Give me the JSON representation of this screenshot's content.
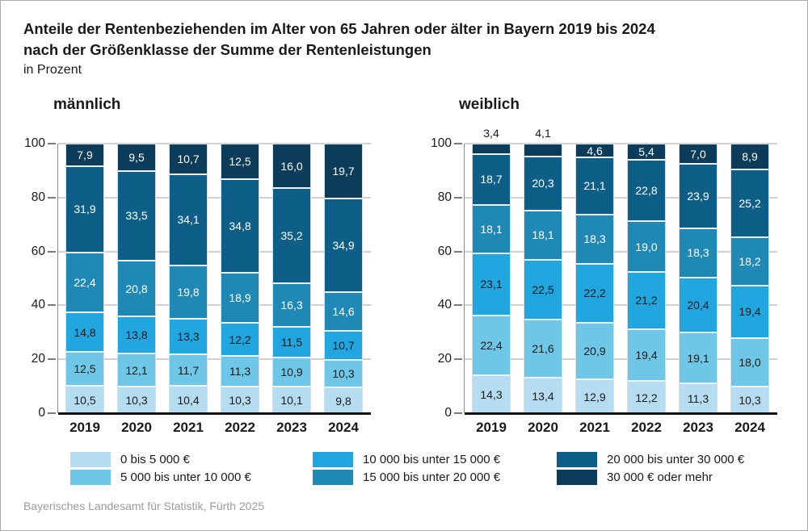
{
  "title": {
    "line1": "Anteile der Rentenbeziehenden im Alter von 65 Jahren oder älter in Bayern 2019 bis 2024",
    "line2": "nach der Größenklasse der Summe der Rentenleistungen",
    "subtitle": "in Prozent"
  },
  "source": "Bayerisches Landesamt für Statistik, Fürth 2025",
  "colors": {
    "grid": "#cdd1d4",
    "baseline": "#111111",
    "separator": "#eef2f5",
    "footer_text": "#9b9b9b"
  },
  "legend": [
    {
      "label": "0 bis 5 000 €",
      "color": "#b5dcf0",
      "value_text_color": "#1a1a1a"
    },
    {
      "label": "5 000 bis unter 10 000 €",
      "color": "#6fc7e7",
      "value_text_color": "#1a1a1a"
    },
    {
      "label": "10 000 bis unter 15 000 €",
      "color": "#21a6e0",
      "value_text_color": "#1a1a1a"
    },
    {
      "label": "15 000 bis unter 20 000 €",
      "color": "#2088b4",
      "value_text_color": "#ffffff"
    },
    {
      "label": "20 000 bis unter 30 000 €",
      "color": "#0e5f88",
      "value_text_color": "#ffffff"
    },
    {
      "label": "30 000 € oder mehr",
      "color": "#0b3c59",
      "value_text_color": "#ffffff"
    }
  ],
  "chart_data": {
    "type": "bar",
    "stacked": true,
    "unit": "Prozent",
    "categories": [
      "2019",
      "2020",
      "2021",
      "2022",
      "2023",
      "2024"
    ],
    "ylim": [
      0,
      100
    ],
    "yticks": [
      0,
      20,
      40,
      60,
      80,
      100
    ],
    "grid": "horizontal",
    "legend_position": "bottom",
    "decimal_separator": ",",
    "charts": [
      {
        "title": "männlich",
        "series": [
          {
            "name": "0 bis 5 000 €",
            "values": [
              10.5,
              10.3,
              10.4,
              10.3,
              10.1,
              9.8
            ]
          },
          {
            "name": "5 000 bis unter 10 000 €",
            "values": [
              12.5,
              12.1,
              11.7,
              11.3,
              10.9,
              10.3
            ]
          },
          {
            "name": "10 000 bis unter 15 000 €",
            "values": [
              14.8,
              13.8,
              13.3,
              12.2,
              11.5,
              10.7
            ]
          },
          {
            "name": "15 000 bis unter 20 000 €",
            "values": [
              22.4,
              20.8,
              19.8,
              18.9,
              16.3,
              14.6
            ]
          },
          {
            "name": "20 000 bis unter 30 000 €",
            "values": [
              31.9,
              33.5,
              34.1,
              34.8,
              35.2,
              34.9
            ]
          },
          {
            "name": "30 000 € oder mehr",
            "values": [
              7.9,
              9.5,
              10.7,
              12.5,
              16.0,
              19.7
            ]
          }
        ],
        "top_label_outside": [
          false,
          false,
          false,
          false,
          false,
          false
        ]
      },
      {
        "title": "weiblich",
        "series": [
          {
            "name": "0 bis 5 000 €",
            "values": [
              14.3,
              13.4,
              12.9,
              12.2,
              11.3,
              10.3
            ]
          },
          {
            "name": "5 000 bis unter 10 000 €",
            "values": [
              22.4,
              21.6,
              20.9,
              19.4,
              19.1,
              18.0
            ]
          },
          {
            "name": "10 000 bis unter 15 000 €",
            "values": [
              23.1,
              22.5,
              22.2,
              21.2,
              20.4,
              19.4
            ]
          },
          {
            "name": "15 000 bis unter 20 000 €",
            "values": [
              18.1,
              18.1,
              18.3,
              19.0,
              18.3,
              18.2
            ]
          },
          {
            "name": "20 000 bis unter 30 000 €",
            "values": [
              18.7,
              20.3,
              21.1,
              22.8,
              23.9,
              25.2
            ]
          },
          {
            "name": "30 000 € oder mehr",
            "values": [
              3.4,
              4.1,
              4.6,
              5.4,
              7.0,
              8.9
            ]
          }
        ],
        "top_label_outside": [
          true,
          true,
          false,
          false,
          false,
          false
        ]
      }
    ]
  }
}
